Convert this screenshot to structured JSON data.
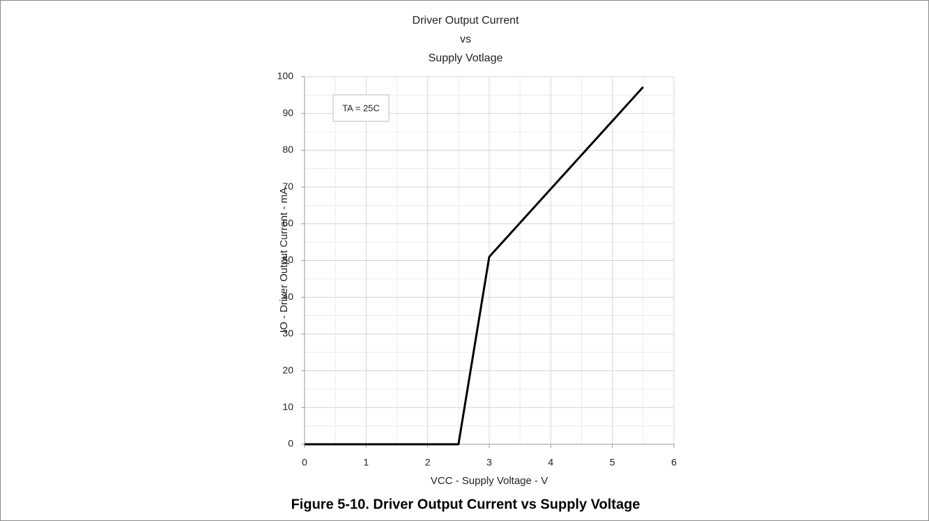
{
  "chart_data": {
    "type": "line",
    "title": [
      "Driver Output Current",
      "vs",
      "Supply Votlage"
    ],
    "x_label": "VCC - Supply Voltage - V",
    "y_label": "IO - Driver Output Current - mA",
    "annotation": "TA = 25C",
    "caption": "Figure 5-10. Driver Output Current vs Supply Voltage",
    "x": [
      0,
      2.5,
      3,
      5.5
    ],
    "series": [
      {
        "name": "IO",
        "color": "#000000",
        "values": [
          0,
          0,
          51,
          97.2
        ]
      }
    ],
    "xlim": [
      0,
      6
    ],
    "xticks": [
      0,
      1,
      2,
      3,
      4,
      5,
      6
    ],
    "xminorticks": [
      0.5,
      1.5,
      2.5,
      3.5,
      4.5,
      5.5
    ],
    "ylim": [
      0,
      100
    ],
    "yticks": [
      0,
      10,
      20,
      30,
      40,
      50,
      60,
      70,
      80,
      90,
      100
    ],
    "yminorticks": [
      5,
      15,
      25,
      35,
      45,
      55,
      65,
      75,
      85,
      95
    ],
    "grid": true
  }
}
